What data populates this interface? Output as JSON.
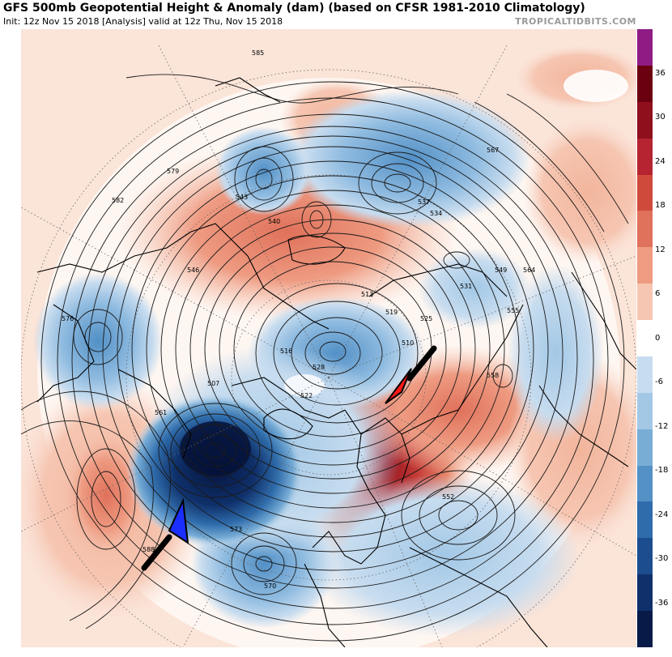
{
  "header": {
    "title": "GFS 500mb Geopotential Height & Anomaly (dam) (based on CFSR 1981-2010 Climatology)",
    "subtitle": "Init: 12z Nov 15 2018   [Analysis]   valid at 12z Thu, Nov 15 2018",
    "brand": "TROPICALTIDBITS.COM"
  },
  "colorbar": {
    "labels": [
      "36",
      "30",
      "24",
      "18",
      "12",
      "6",
      "0",
      "-6",
      "-12",
      "-18",
      "-24",
      "-30",
      "-36"
    ],
    "colors": [
      "#8e1c84",
      "#6b0010",
      "#8f0f1c",
      "#b52430",
      "#d04a3c",
      "#e0715a",
      "#ee9b82",
      "#f6c6b2",
      "#ffffff",
      "#c7dcef",
      "#a2c8e6",
      "#78add6",
      "#5290c6",
      "#2f6cab",
      "#1c4d8e",
      "#0f306a",
      "#071a48"
    ]
  },
  "map": {
    "contour_labels": [
      "585",
      "588",
      "582",
      "579",
      "576",
      "573",
      "570",
      "567",
      "564",
      "561",
      "558",
      "555",
      "552",
      "549",
      "546",
      "543",
      "540",
      "537",
      "534",
      "531",
      "528",
      "525",
      "522",
      "519",
      "516",
      "513",
      "510",
      "507"
    ],
    "arrows": [
      {
        "name": "blue-arrow",
        "color": "#1a2fff"
      },
      {
        "name": "red-arrow",
        "color": "#ff1a1a"
      }
    ]
  }
}
